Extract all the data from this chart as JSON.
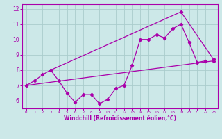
{
  "xlabel": "Windchill (Refroidissement éolien,°C)",
  "bg_color": "#cce8e8",
  "line_color": "#aa00aa",
  "grid_color": "#aacccc",
  "line1_x": [
    0,
    1,
    2,
    3,
    4,
    5,
    6,
    7,
    8,
    9,
    10,
    11,
    12,
    13,
    14,
    15,
    16,
    17,
    18,
    19,
    20,
    21,
    22
  ],
  "line1_y": [
    7.0,
    7.3,
    7.7,
    8.0,
    7.3,
    6.5,
    5.9,
    6.4,
    6.4,
    5.8,
    6.1,
    6.8,
    7.0,
    8.3,
    10.0,
    10.0,
    10.3,
    10.1,
    10.7,
    11.0,
    9.8,
    8.5,
    8.6
  ],
  "line2_x": [
    0,
    23
  ],
  "line2_y": [
    7.0,
    8.6
  ],
  "line3_x": [
    3,
    19,
    23
  ],
  "line3_y": [
    8.0,
    11.8,
    8.7
  ],
  "ylim": [
    5.5,
    12.3
  ],
  "xlim": [
    -0.5,
    23.5
  ],
  "yticks": [
    6,
    7,
    8,
    9,
    10,
    11,
    12
  ],
  "xticks": [
    0,
    1,
    2,
    3,
    4,
    5,
    6,
    7,
    8,
    9,
    10,
    11,
    12,
    13,
    14,
    15,
    16,
    17,
    18,
    19,
    20,
    21,
    22,
    23
  ]
}
